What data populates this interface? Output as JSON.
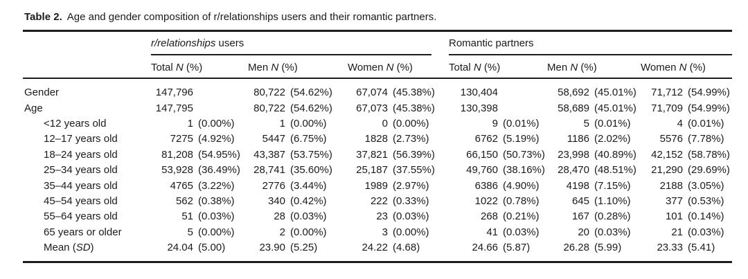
{
  "caption": {
    "label": "Table 2.",
    "text": "Age and gender composition of r/relationships users and their romantic partners."
  },
  "table": {
    "groups": [
      {
        "italic": "r/relationships",
        "rest": " users"
      },
      {
        "italic": "",
        "rest": "Romantic partners"
      }
    ],
    "columns": [
      {
        "pre": "Total ",
        "italic": "N",
        "post": " (%)"
      },
      {
        "pre": "Men ",
        "italic": "N",
        "post": " (%)"
      },
      {
        "pre": "Women ",
        "italic": "N",
        "post": " (%)"
      },
      {
        "pre": "Total ",
        "italic": "N",
        "post": " (%)"
      },
      {
        "pre": "Men ",
        "italic": "N",
        "post": " (%)"
      },
      {
        "pre": "Women ",
        "italic": "N",
        "post": " (%)"
      }
    ],
    "rows": [
      {
        "label": {
          "pre": "Gender",
          "italic": "",
          "post": ""
        },
        "indent": false,
        "cells": [
          {
            "n": "147,796",
            "pct": ""
          },
          {
            "n": "80,722",
            "pct": "(54.62%)"
          },
          {
            "n": "67,074",
            "pct": "(45.38%)"
          },
          {
            "n": "130,404",
            "pct": ""
          },
          {
            "n": "58,692",
            "pct": "(45.01%)"
          },
          {
            "n": "71,712",
            "pct": "(54.99%)"
          }
        ]
      },
      {
        "label": {
          "pre": "Age",
          "italic": "",
          "post": ""
        },
        "indent": false,
        "cells": [
          {
            "n": "147,795",
            "pct": ""
          },
          {
            "n": "80,722",
            "pct": "(54.62%)"
          },
          {
            "n": "67,073",
            "pct": "(45.38%)"
          },
          {
            "n": "130,398",
            "pct": ""
          },
          {
            "n": "58,689",
            "pct": "(45.01%)"
          },
          {
            "n": "71,709",
            "pct": "(54.99%)"
          }
        ]
      },
      {
        "label": {
          "pre": "<12 years old",
          "italic": "",
          "post": ""
        },
        "indent": true,
        "cells": [
          {
            "n": "1",
            "pct": "(0.00%)"
          },
          {
            "n": "1",
            "pct": "(0.00%)"
          },
          {
            "n": "0",
            "pct": "(0.00%)"
          },
          {
            "n": "9",
            "pct": "(0.01%)"
          },
          {
            "n": "5",
            "pct": "(0.01%)"
          },
          {
            "n": "4",
            "pct": "(0.01%)"
          }
        ]
      },
      {
        "label": {
          "pre": "12–17 years old",
          "italic": "",
          "post": ""
        },
        "indent": true,
        "cells": [
          {
            "n": "7275",
            "pct": "(4.92%)"
          },
          {
            "n": "5447",
            "pct": "(6.75%)"
          },
          {
            "n": "1828",
            "pct": "(2.73%)"
          },
          {
            "n": "6762",
            "pct": "(5.19%)"
          },
          {
            "n": "1186",
            "pct": "(2.02%)"
          },
          {
            "n": "5576",
            "pct": "(7.78%)"
          }
        ]
      },
      {
        "label": {
          "pre": "18–24 years old",
          "italic": "",
          "post": ""
        },
        "indent": true,
        "cells": [
          {
            "n": "81,208",
            "pct": "(54.95%)"
          },
          {
            "n": "43,387",
            "pct": "(53.75%)"
          },
          {
            "n": "37,821",
            "pct": "(56.39%)"
          },
          {
            "n": "66,150",
            "pct": "(50.73%)"
          },
          {
            "n": "23,998",
            "pct": "(40.89%)"
          },
          {
            "n": "42,152",
            "pct": "(58.78%)"
          }
        ]
      },
      {
        "label": {
          "pre": "25–34 years old",
          "italic": "",
          "post": ""
        },
        "indent": true,
        "cells": [
          {
            "n": "53,928",
            "pct": "(36.49%)"
          },
          {
            "n": "28,741",
            "pct": "(35.60%)"
          },
          {
            "n": "25,187",
            "pct": "(37.55%)"
          },
          {
            "n": "49,760",
            "pct": "(38.16%)"
          },
          {
            "n": "28,470",
            "pct": "(48.51%)"
          },
          {
            "n": "21,290",
            "pct": "(29.69%)"
          }
        ]
      },
      {
        "label": {
          "pre": "35–44 years old",
          "italic": "",
          "post": ""
        },
        "indent": true,
        "cells": [
          {
            "n": "4765",
            "pct": "(3.22%)"
          },
          {
            "n": "2776",
            "pct": "(3.44%)"
          },
          {
            "n": "1989",
            "pct": "(2.97%)"
          },
          {
            "n": "6386",
            "pct": "(4.90%)"
          },
          {
            "n": "4198",
            "pct": "(7.15%)"
          },
          {
            "n": "2188",
            "pct": "(3.05%)"
          }
        ]
      },
      {
        "label": {
          "pre": "45–54 years old",
          "italic": "",
          "post": ""
        },
        "indent": true,
        "cells": [
          {
            "n": "562",
            "pct": "(0.38%)"
          },
          {
            "n": "340",
            "pct": "(0.42%)"
          },
          {
            "n": "222",
            "pct": "(0.33%)"
          },
          {
            "n": "1022",
            "pct": "(0.78%)"
          },
          {
            "n": "645",
            "pct": "(1.10%)"
          },
          {
            "n": "377",
            "pct": "(0.53%)"
          }
        ]
      },
      {
        "label": {
          "pre": "55–64 years old",
          "italic": "",
          "post": ""
        },
        "indent": true,
        "cells": [
          {
            "n": "51",
            "pct": "(0.03%)"
          },
          {
            "n": "28",
            "pct": "(0.03%)"
          },
          {
            "n": "23",
            "pct": "(0.03%)"
          },
          {
            "n": "268",
            "pct": "(0.21%)"
          },
          {
            "n": "167",
            "pct": "(0.28%)"
          },
          {
            "n": "101",
            "pct": "(0.14%)"
          }
        ]
      },
      {
        "label": {
          "pre": "65 years or older",
          "italic": "",
          "post": ""
        },
        "indent": true,
        "cells": [
          {
            "n": "5",
            "pct": "(0.00%)"
          },
          {
            "n": "2",
            "pct": "(0.00%)"
          },
          {
            "n": "3",
            "pct": "(0.00%)"
          },
          {
            "n": "41",
            "pct": "(0.03%)"
          },
          {
            "n": "20",
            "pct": "(0.03%)"
          },
          {
            "n": "21",
            "pct": "(0.03%)"
          }
        ]
      },
      {
        "label": {
          "pre": "Mean (",
          "italic": "SD",
          "post": ")"
        },
        "indent": true,
        "cells": [
          {
            "n": "24.04",
            "pct": "(5.00)"
          },
          {
            "n": "23.90",
            "pct": "(5.25)"
          },
          {
            "n": "24.22",
            "pct": "(4.68)"
          },
          {
            "n": "24.66",
            "pct": "(5.87)"
          },
          {
            "n": "26.28",
            "pct": "(5.99)"
          },
          {
            "n": "23.33",
            "pct": "(5.41)"
          }
        ]
      }
    ]
  }
}
